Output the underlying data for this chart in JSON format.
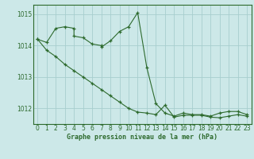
{
  "line1_x": [
    0,
    1,
    2,
    3,
    4,
    4,
    5,
    6,
    7,
    7,
    8,
    9,
    10,
    11,
    12,
    13,
    14,
    15,
    16,
    17,
    18,
    19,
    20,
    21,
    22,
    23
  ],
  "line1_y": [
    1014.2,
    1014.1,
    1014.55,
    1014.6,
    1014.55,
    1014.3,
    1014.25,
    1014.05,
    1014.0,
    1013.95,
    1014.15,
    1014.45,
    1014.6,
    1015.05,
    1013.3,
    1012.15,
    1011.85,
    1011.75,
    1011.85,
    1011.8,
    1011.8,
    1011.75,
    1011.85,
    1011.9,
    1011.9,
    1011.8
  ],
  "line2_x": [
    0,
    1,
    2,
    3,
    4,
    5,
    6,
    7,
    8,
    9,
    10,
    11,
    12,
    13,
    14,
    15,
    16,
    17,
    18,
    19,
    20,
    21,
    22,
    23
  ],
  "line2_y": [
    1014.2,
    1013.85,
    1013.65,
    1013.4,
    1013.2,
    1013.0,
    1012.8,
    1012.6,
    1012.4,
    1012.2,
    1012.0,
    1011.88,
    1011.85,
    1011.8,
    1012.1,
    1011.72,
    1011.78,
    1011.78,
    1011.78,
    1011.72,
    1011.7,
    1011.75,
    1011.8,
    1011.75
  ],
  "line_color": "#2d6a2d",
  "bg_color": "#cce8e8",
  "grid_color": "#a8cece",
  "axis_color": "#2d6a2d",
  "xlabel": "Graphe pression niveau de la mer (hPa)",
  "ylim": [
    1011.5,
    1015.3
  ],
  "xlim": [
    -0.5,
    23.5
  ],
  "yticks": [
    1012,
    1013,
    1014,
    1015
  ],
  "xticks": [
    0,
    1,
    2,
    3,
    4,
    5,
    6,
    7,
    8,
    9,
    10,
    11,
    12,
    13,
    14,
    15,
    16,
    17,
    18,
    19,
    20,
    21,
    22,
    23
  ],
  "xlabel_fontsize": 6.0,
  "tick_fontsize": 5.5
}
